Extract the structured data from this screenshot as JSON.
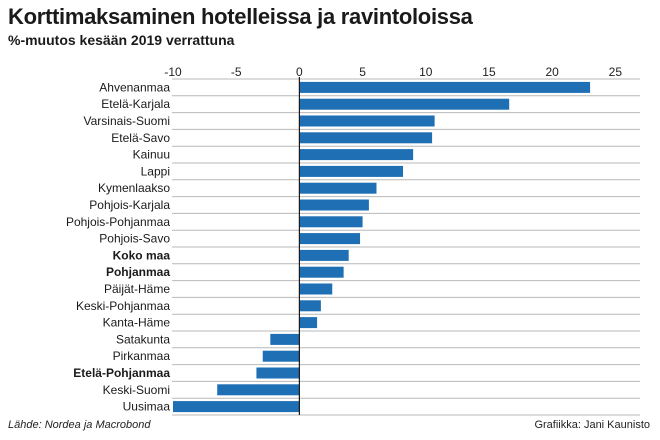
{
  "header": {
    "title": "Korttimaksaminen hotelleissa ja ravintoloissa",
    "subtitle": "%-muutos kesään 2019 verrattuna"
  },
  "footer": {
    "source": "Lähde: Nordea ja Macrobond",
    "credit": "Grafiikka: Jani Kaunisto"
  },
  "chart_data": {
    "type": "bar",
    "orientation": "horizontal",
    "title": "Korttimaksaminen hotelleissa ja ravintoloissa",
    "subtitle": "%-muutos kesään 2019 verrattuna",
    "xlim": [
      -10,
      26
    ],
    "x_ticks": [
      -10,
      -5,
      0,
      5,
      10,
      15,
      20,
      25
    ],
    "x_tick_labels": [
      "-10",
      "-5",
      "0",
      "5",
      "10",
      "15",
      "20",
      "25"
    ],
    "grid": true,
    "bar_color": "#1f6fb5",
    "categories": [
      "Ahvenanmaa",
      "Etelä-Karjala",
      "Varsinais-Suomi",
      "Etelä-Savo",
      "Kainuu",
      "Lappi",
      "Kymenlaakso",
      "Pohjois-Karjala",
      "Pohjois-Pohjanmaa",
      "Pohjois-Savo",
      "Koko maa",
      "Pohjanmaa",
      "Päijät-Häme",
      "Keski-Pohjanmaa",
      "Kanta-Häme",
      "Satakunta",
      "Pirkanmaa",
      "Etelä-Pohjanmaa",
      "Keski-Suomi",
      "Uusimaa"
    ],
    "values": [
      23.0,
      16.6,
      10.7,
      10.5,
      9.0,
      8.2,
      6.1,
      5.5,
      5.0,
      4.8,
      3.9,
      3.5,
      2.6,
      1.7,
      1.4,
      -2.3,
      -2.9,
      -3.4,
      -6.5,
      -10.0
    ],
    "bold_categories": [
      "Koko maa",
      "Pohjanmaa",
      "Etelä-Pohjanmaa"
    ]
  }
}
